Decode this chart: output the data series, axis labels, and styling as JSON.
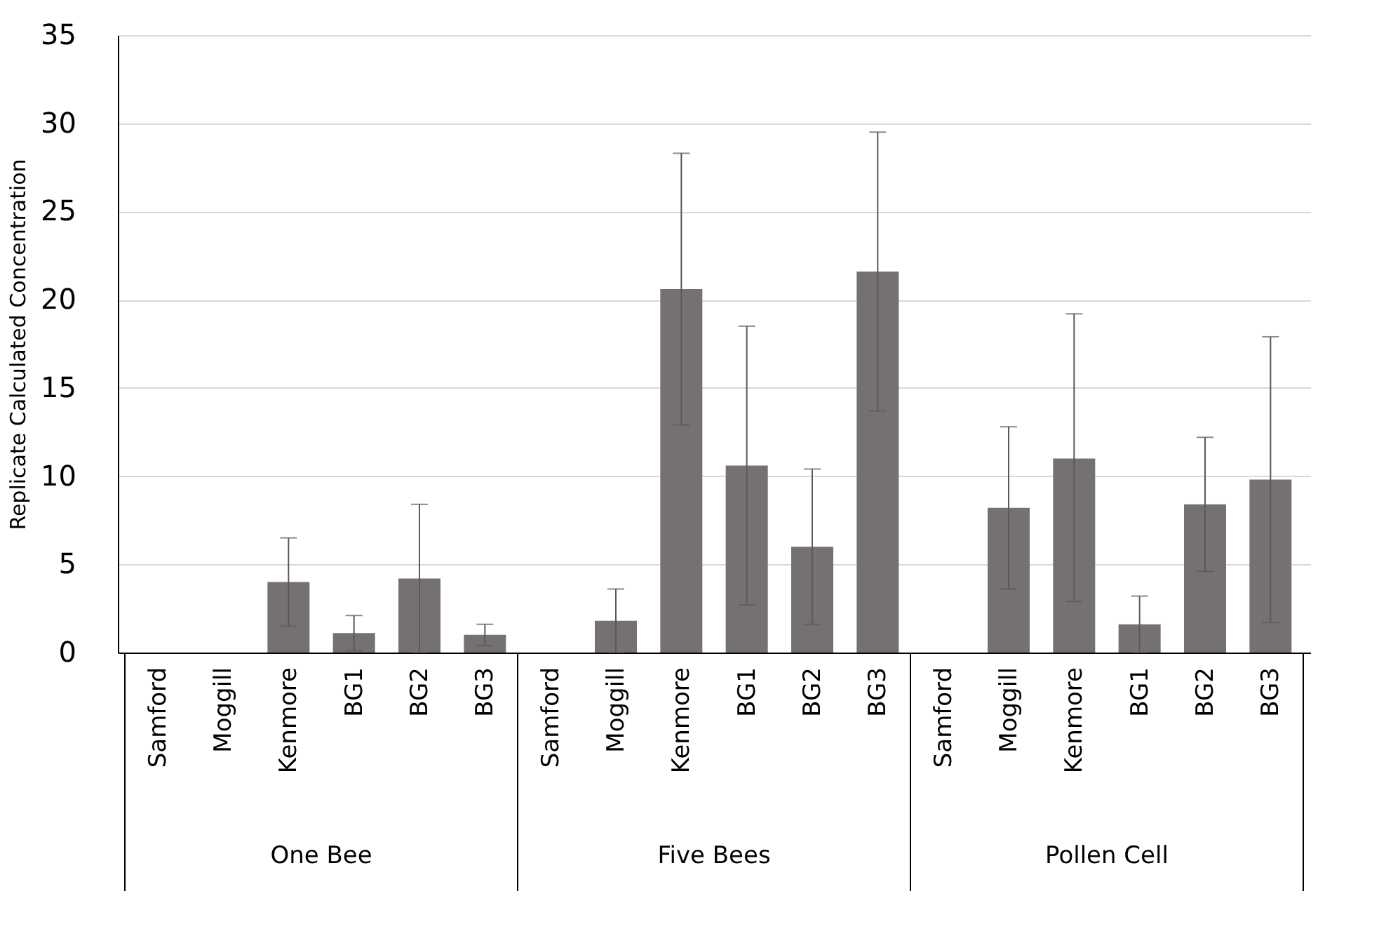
{
  "chart_data": {
    "type": "bar",
    "ylabel": "Replicate Calculated Concentration",
    "categories": [
      "Samford",
      "Moggill",
      "Kenmore",
      "BG1",
      "BG2",
      "BG3",
      "Samford",
      "Moggill",
      "Kenmore",
      "BG1",
      "BG2",
      "BG3",
      "Samford",
      "Moggill",
      "Kenmore",
      "BG1",
      "BG2",
      "BG3"
    ],
    "values": [
      0,
      0,
      4.0,
      1.1,
      4.2,
      1.0,
      0,
      1.8,
      20.6,
      10.6,
      6.0,
      21.6,
      0,
      8.2,
      11.0,
      1.6,
      8.4,
      9.8
    ],
    "errors": [
      null,
      null,
      [
        1.5,
        6.5
      ],
      [
        0.1,
        2.1
      ],
      [
        0,
        8.4
      ],
      [
        0.4,
        1.6
      ],
      null,
      [
        0,
        3.6
      ],
      [
        12.9,
        28.3
      ],
      [
        2.7,
        18.5
      ],
      [
        1.6,
        10.4
      ],
      [
        13.7,
        29.5
      ],
      null,
      [
        3.6,
        12.8
      ],
      [
        2.9,
        19.2
      ],
      [
        0,
        3.2
      ],
      [
        4.6,
        12.2
      ],
      [
        1.7,
        17.9
      ]
    ],
    "color": "#767171",
    "ylim": [
      0,
      35
    ],
    "yticks": [
      0,
      5,
      10,
      15,
      20,
      25,
      30,
      35
    ],
    "grid": "y",
    "annotations": [
      "One Bee",
      "Five Bees",
      "Pollen Cell"
    ]
  }
}
